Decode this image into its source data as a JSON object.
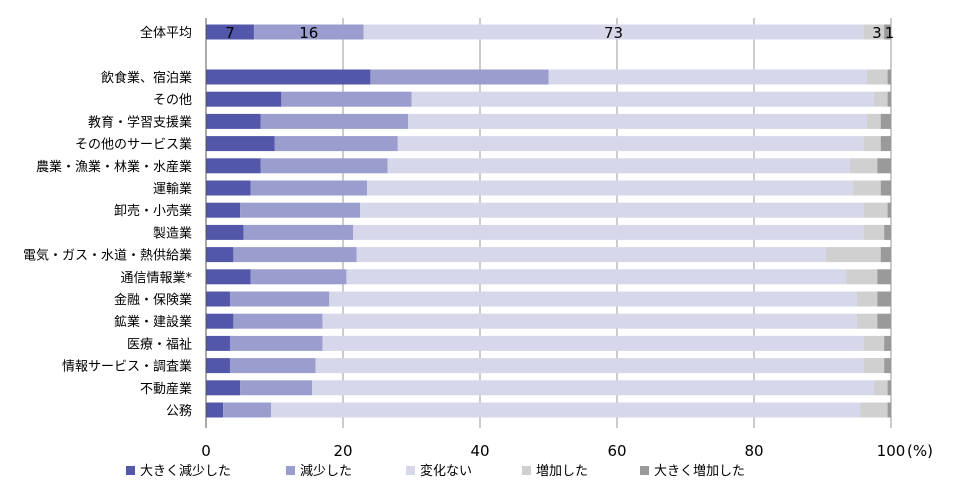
{
  "chart_data": {
    "type": "bar",
    "orientation": "horizontal",
    "stacked": true,
    "categories": [
      "全体平均",
      "飲食業、宿泊業",
      "その他",
      "教育・学習支援業",
      "その他のサービス業",
      "農業・漁業・林業・水産業",
      "運輸業",
      "卸売・小売業",
      "製造業",
      "電気・ガス・水道・熱供給業",
      "通信情報業*",
      "金融・保険業",
      "鉱業・建設業",
      "医療・福祉",
      "情報サービス・調査業",
      "不動産業",
      "公務"
    ],
    "series": [
      {
        "name": "大きく減少した",
        "color": "#5357a9",
        "values": [
          7,
          24,
          11,
          8,
          10,
          8,
          6.5,
          5,
          5.5,
          4,
          6.5,
          3.5,
          4,
          3.5,
          3.5,
          5,
          2.5
        ]
      },
      {
        "name": "減少した",
        "color": "#9b9dcf",
        "values": [
          16,
          26,
          19,
          21.5,
          18,
          18.5,
          17,
          17.5,
          16,
          18,
          14,
          14.5,
          13,
          13.5,
          12.5,
          10.5,
          7
        ]
      },
      {
        "name": "変化ない",
        "color": "#d6d7ea",
        "values": [
          73,
          46.5,
          67.5,
          67,
          68,
          67.5,
          71,
          73.5,
          74.5,
          68.5,
          73,
          77,
          78,
          79,
          80,
          82,
          86
        ]
      },
      {
        "name": "増加した",
        "color": "#d0d0d0",
        "values": [
          3,
          3,
          2,
          2,
          2.5,
          4,
          4,
          3.5,
          3,
          8,
          4.5,
          3,
          3,
          3,
          3,
          2,
          4
        ]
      },
      {
        "name": "大きく増加した",
        "color": "#9a9a9a",
        "values": [
          1,
          0.5,
          0.5,
          1.5,
          1.5,
          2,
          1.5,
          0.5,
          1,
          1.5,
          2,
          2,
          2,
          1,
          1,
          0.5,
          0.5
        ]
      }
    ],
    "data_labels": [
      {
        "category": "全体平均",
        "series": "大きく減少した",
        "text": "7"
      },
      {
        "category": "全体平均",
        "series": "減少した",
        "text": "16"
      },
      {
        "category": "全体平均",
        "series": "変化ない",
        "text": "73"
      },
      {
        "category": "全体平均",
        "series": "増加した",
        "text": "3"
      },
      {
        "category": "全体平均",
        "series": "大きく増加した",
        "text": "1"
      }
    ],
    "xlim": [
      0,
      100
    ],
    "x_ticks": [
      "0",
      "20",
      "40",
      "60",
      "80",
      "100"
    ],
    "x_unit": "(%)",
    "grid": "vertical",
    "legend": "bottom",
    "title": "",
    "xlabel": "",
    "ylabel": ""
  }
}
